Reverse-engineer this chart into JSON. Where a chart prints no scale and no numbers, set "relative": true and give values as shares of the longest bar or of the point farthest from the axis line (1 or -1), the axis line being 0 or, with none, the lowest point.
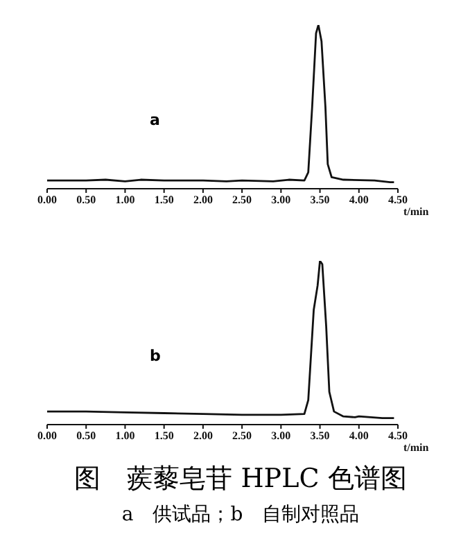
{
  "chart_data": [
    {
      "type": "line",
      "relative": true,
      "xlabel": "t/min",
      "annotations": [
        "a"
      ],
      "tick_labels": "x",
      "marker": "none",
      "xlim": [
        0,
        4.5
      ],
      "xticks": [
        {
          "value": 0,
          "label": "0.00"
        },
        {
          "value": 0.5,
          "label": "0.50"
        },
        {
          "value": 1,
          "label": "1.00"
        },
        {
          "value": 1.5,
          "label": "1.50"
        },
        {
          "value": 2,
          "label": "2.00"
        },
        {
          "value": 2.5,
          "label": "2.50"
        },
        {
          "value": 3,
          "label": "3.00"
        },
        {
          "value": 3.5,
          "label": "3.50"
        },
        {
          "value": 4,
          "label": "4.00"
        },
        {
          "value": 4.5,
          "label": "4.50"
        }
      ],
      "series": [
        {
          "color": "#111111",
          "x": [
            0,
            0.5,
            0.75,
            1.0,
            1.2,
            1.5,
            2.0,
            2.3,
            2.5,
            2.9,
            3.1,
            3.3,
            3.35,
            3.4,
            3.45,
            3.48,
            3.52,
            3.57,
            3.6,
            3.65,
            3.8,
            4.2,
            4.4,
            4.45
          ],
          "values": [
            0.05,
            0.05,
            0.055,
            0.045,
            0.055,
            0.05,
            0.05,
            0.045,
            0.05,
            0.045,
            0.055,
            0.05,
            0.1,
            0.5,
            0.95,
            1,
            0.9,
            0.5,
            0.15,
            0.07,
            0.055,
            0.05,
            0.04,
            0.04
          ]
        }
      ]
    },
    {
      "type": "line",
      "relative": true,
      "xlabel": "t/min",
      "annotations": [
        "b"
      ],
      "tick_labels": "x",
      "marker": "none",
      "title": "图　蒺藜皂苷 HPLC 色谱图",
      "subtitle": "a　供试品；b　自制对照品",
      "xlim": [
        0,
        4.5
      ],
      "xticks": [
        {
          "value": 0,
          "label": "0.00"
        },
        {
          "value": 0.5,
          "label": "0.50"
        },
        {
          "value": 1,
          "label": "1.00"
        },
        {
          "value": 1.5,
          "label": "1.50"
        },
        {
          "value": 2,
          "label": "2.00"
        },
        {
          "value": 2.5,
          "label": "2.50"
        },
        {
          "value": 3,
          "label": "3.00"
        },
        {
          "value": 3.5,
          "label": "3.50"
        },
        {
          "value": 4,
          "label": "4.00"
        },
        {
          "value": 4.5,
          "label": "4.50"
        }
      ],
      "series": [
        {
          "color": "#111111",
          "x": [
            0,
            0.5,
            1.0,
            1.5,
            2.0,
            2.5,
            3.0,
            3.3,
            3.35,
            3.42,
            3.47,
            3.5,
            3.53,
            3.58,
            3.62,
            3.68,
            3.8,
            3.95,
            4.0,
            4.3,
            4.45
          ],
          "values": [
            0.08,
            0.08,
            0.075,
            0.07,
            0.065,
            0.06,
            0.06,
            0.065,
            0.15,
            0.7,
            0.85,
            1,
            0.98,
            0.6,
            0.2,
            0.08,
            0.05,
            0.045,
            0.05,
            0.04,
            0.04
          ]
        }
      ]
    }
  ]
}
